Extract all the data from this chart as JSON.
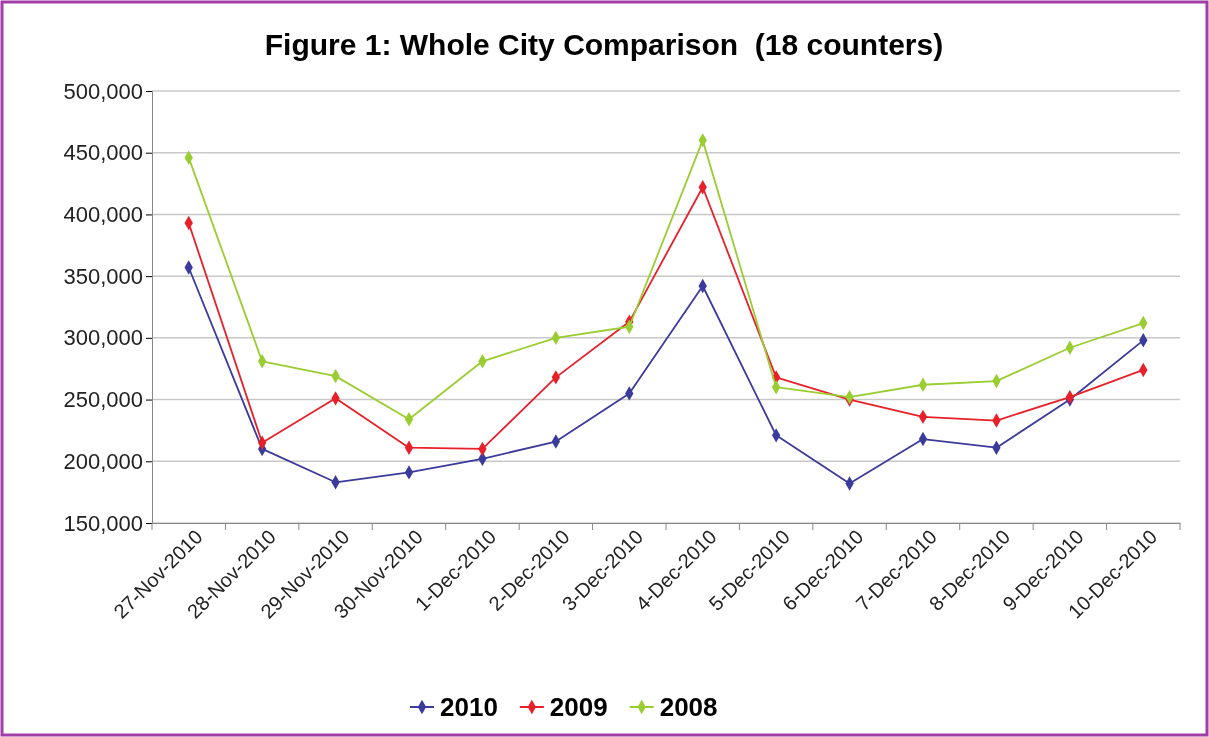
{
  "chart_data": {
    "type": "line",
    "title": "Figure 1: Whole City Comparison  (18 counters)",
    "categories": [
      "27-Nov-2010",
      "28-Nov-2010",
      "29-Nov-2010",
      "30-Nov-2010",
      "1-Dec-2010",
      "2-Dec-2010",
      "3-Dec-2010",
      "4-Dec-2010",
      "5-Dec-2010",
      "6-Dec-2010",
      "7-Dec-2010",
      "8-Dec-2010",
      "9-Dec-2010",
      "10-Dec-2010"
    ],
    "series": [
      {
        "name": "2010",
        "color": "#3b3b9c",
        "values": [
          357000,
          210000,
          183000,
          191000,
          202000,
          216000,
          255000,
          342000,
          221000,
          182000,
          218000,
          211000,
          250000,
          298000
        ]
      },
      {
        "name": "2009",
        "color": "#e8202a",
        "values": [
          393000,
          215000,
          251000,
          211000,
          210000,
          268000,
          313000,
          422000,
          268000,
          250000,
          236000,
          233000,
          252000,
          274000
        ]
      },
      {
        "name": "2008",
        "color": "#9acd32",
        "values": [
          446000,
          281000,
          269000,
          234000,
          281000,
          300000,
          309000,
          460000,
          260000,
          252000,
          262000,
          265000,
          292000,
          312000
        ]
      }
    ],
    "ylim": [
      150000,
      500000
    ],
    "yticks": [
      {
        "value": 150000,
        "label": "150,000"
      },
      {
        "value": 200000,
        "label": "200,000"
      },
      {
        "value": 250000,
        "label": "250,000"
      },
      {
        "value": 300000,
        "label": "300,000"
      },
      {
        "value": 350000,
        "label": "350,000"
      },
      {
        "value": 400000,
        "label": "400,000"
      },
      {
        "value": 450000,
        "label": "450,000"
      },
      {
        "value": 500000,
        "label": "500,000"
      }
    ],
    "grid": "y",
    "legend": "bottom",
    "marker": "diamond",
    "line_style": "solid"
  }
}
